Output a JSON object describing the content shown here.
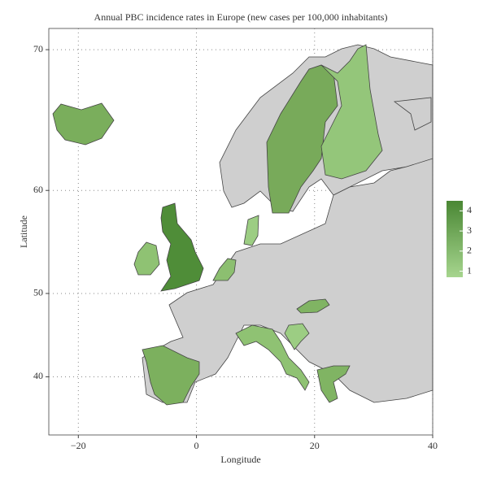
{
  "chart_data": {
    "type": "map",
    "title": "Annual PBC incidence rates in Europe (new cases per 100,000 inhabitants)",
    "xlabel": "Longitude",
    "ylabel": "Latitude",
    "xlim": [
      -25,
      40
    ],
    "ylim": [
      32,
      71.2
    ],
    "xticks": [
      {
        "value": -20,
        "label": "−20"
      },
      0,
      20,
      40
    ],
    "yticks": [
      40,
      50,
      60,
      70
    ],
    "grid": true,
    "colorbar": {
      "lim": [
        0.7,
        4.5
      ],
      "ticks": [
        1,
        2,
        3,
        4
      ],
      "colors": [
        "#a6d58e",
        "#4a8734"
      ]
    }
  }
}
